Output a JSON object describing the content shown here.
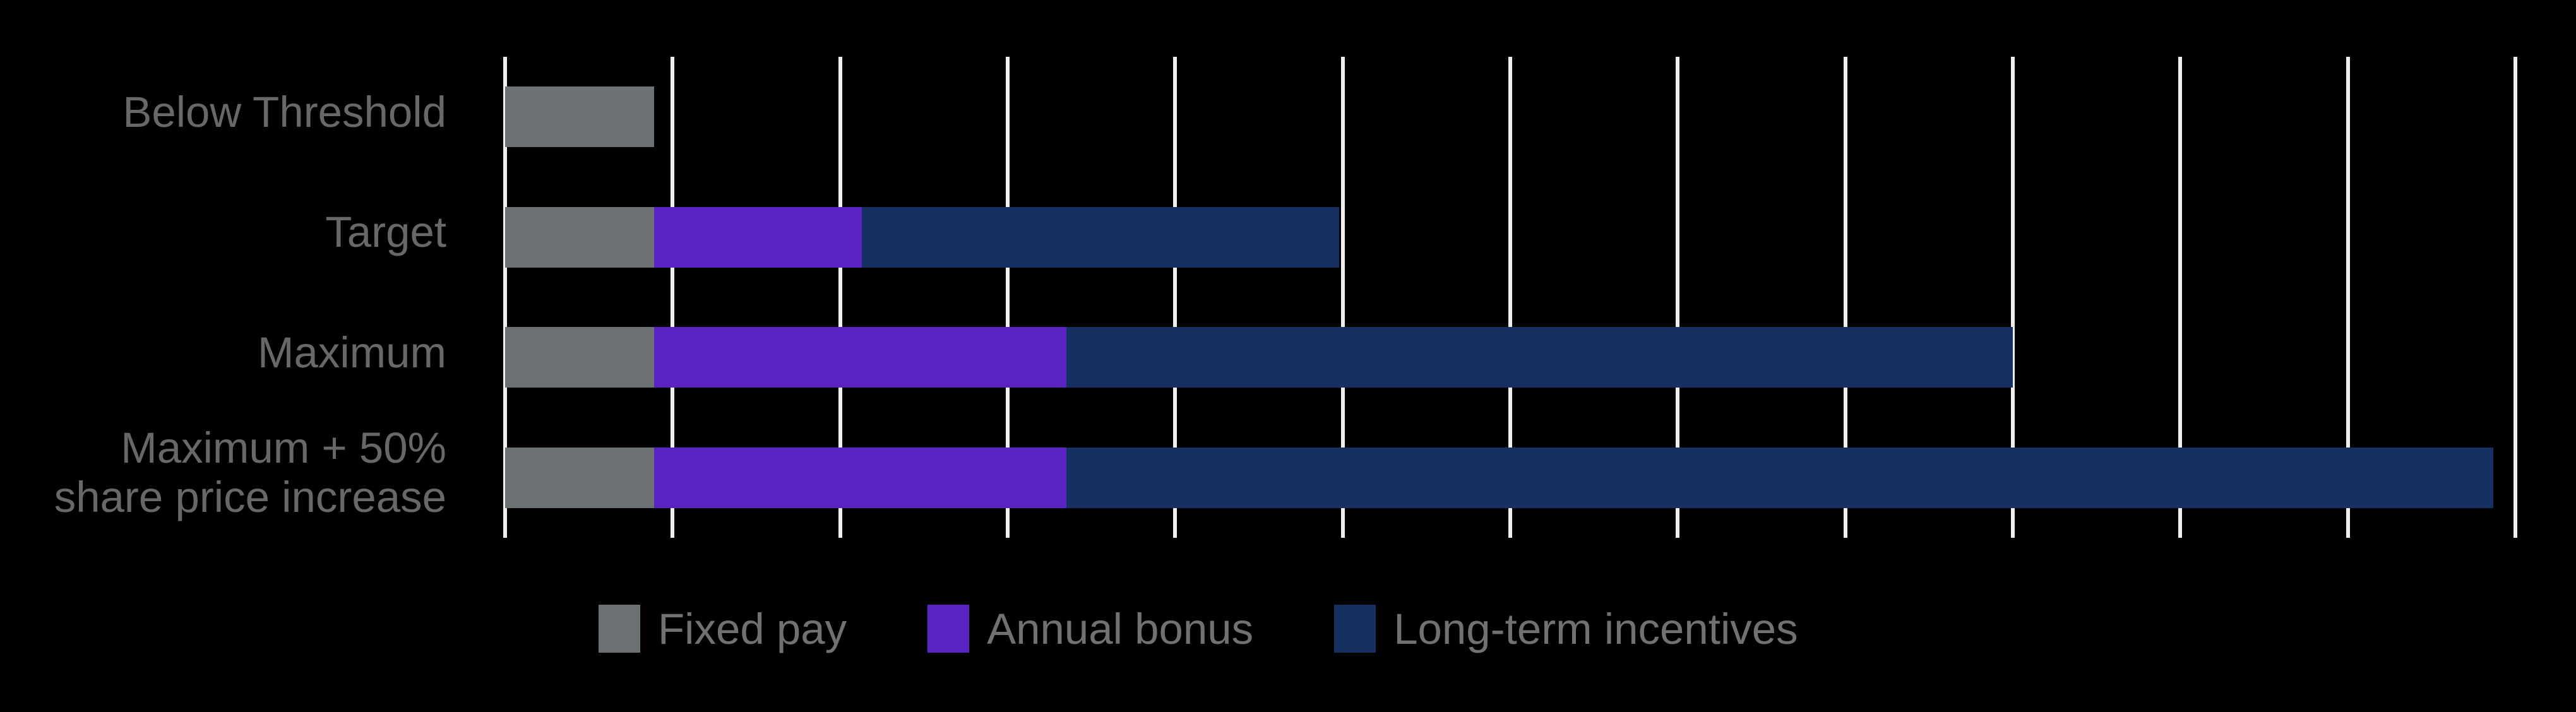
{
  "background_color": "#000000",
  "chart_data": {
    "type": "bar",
    "orientation": "horizontal",
    "stacked": true,
    "title": "",
    "xlabel": "",
    "ylabel": "",
    "categories": [
      "Below Threshold",
      "Target",
      "Maximum",
      "Maximum + 50%\nshare price increase"
    ],
    "series": [
      {
        "name": "Fixed pay",
        "color": "#6c7273",
        "values": [
          0.89,
          0.89,
          0.89,
          0.89
        ]
      },
      {
        "name": "Annual bonus",
        "color": "#5b23c1",
        "values": [
          0,
          1.24,
          2.46,
          2.46
        ]
      },
      {
        "name": "Long-term incentives",
        "color": "#153061",
        "values": [
          0,
          2.85,
          5.65,
          8.52
        ]
      }
    ],
    "totals": [
      0.89,
      4.98,
      9.0,
      11.87
    ],
    "x_axis": {
      "min": 0,
      "max": 12,
      "gridline_interval": 1,
      "gridline_count": 13,
      "tick_labels_visible": false
    },
    "grid_on": true,
    "gridline_color": "#f1efec",
    "label_color": "#67686a",
    "legend": {
      "position": "bottom",
      "entries": [
        "Fixed pay",
        "Annual bonus",
        "Long-term incentives"
      ],
      "text_color": "#707173"
    }
  }
}
